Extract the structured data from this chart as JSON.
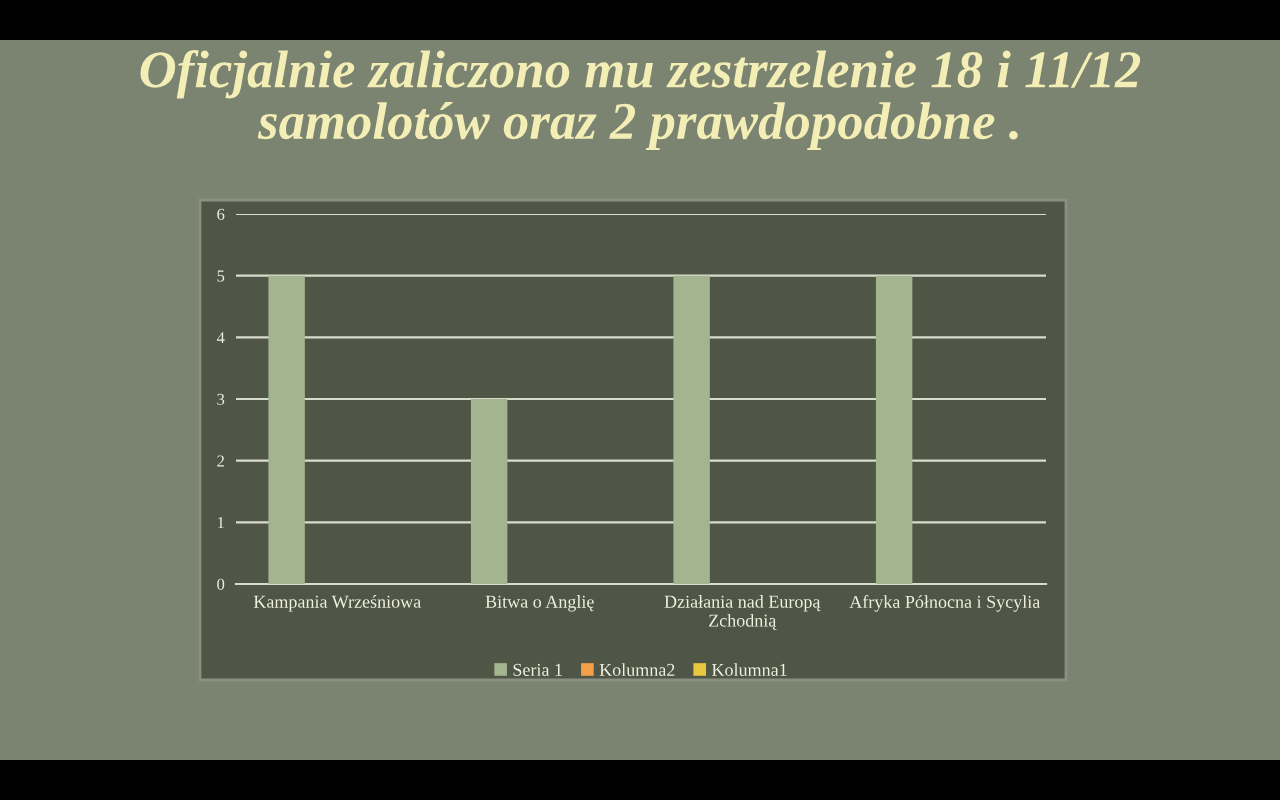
{
  "chart_data": {
    "type": "bar",
    "title": "Oficjalnie zaliczono mu zestrzelenie 18 i 11/12\nsamolotów oraz 2 prawdopodobne .",
    "categories": [
      "Kampania Wrześniowa",
      "Bitwa o Anglię",
      "Działania nad Europą Zchodnią",
      "Afryka Północna i Sycylia"
    ],
    "series": [
      {
        "name": "Seria 1",
        "color": "#a3b48f",
        "values": [
          5,
          3,
          5,
          5
        ]
      },
      {
        "name": "Kolumna2",
        "color": "#f4a04a",
        "values": [
          null,
          null,
          null,
          null
        ]
      },
      {
        "name": "Kolumna1",
        "color": "#e8c840",
        "values": [
          null,
          null,
          null,
          null
        ]
      }
    ],
    "ylim": [
      0,
      6
    ],
    "yticks": [
      0,
      1,
      2,
      3,
      4,
      5,
      6
    ],
    "grid": "y",
    "legend": "bottom"
  }
}
